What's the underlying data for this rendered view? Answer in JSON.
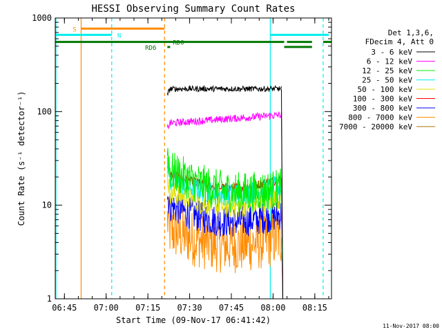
{
  "chart_data": {
    "type": "line",
    "title": "HESSI Observing Summary Count Rates",
    "xlabel": "Start Time (09-Nov-17 06:41:42)",
    "ylabel": "Count Rate (s⁻¹ detector⁻¹)",
    "y_scale": "log",
    "ylim": [
      1,
      1000
    ],
    "xlim": [
      "06:41:42",
      "08:21:00"
    ],
    "x_ticks": [
      "06:45",
      "07:00",
      "07:15",
      "07:30",
      "07:45",
      "08:00",
      "08:15"
    ],
    "y_ticks": [
      "1",
      "10",
      "100",
      "1000"
    ],
    "legend_header": [
      "Det 1,3,6,",
      "FDecim 4, Att 0"
    ],
    "legend_position": "right",
    "series": [
      {
        "name": "3 - 6 keV",
        "color": "#000000",
        "x_start": "07:22",
        "x_end": "08:03",
        "level_start": 175,
        "level_end": 175,
        "noise": 0.03,
        "drop_start": 150
      },
      {
        "name": "6 - 12 keV",
        "color": "#ff00ff",
        "x_start": "07:22",
        "x_end": "08:03",
        "level_start": 75,
        "level_end": 92,
        "noise": 0.04,
        "drop_start": 65
      },
      {
        "name": "12 - 25 keV",
        "color": "#00ee00",
        "x_start": "07:22",
        "x_end": "08:03",
        "level_start": 24,
        "level_end": 15,
        "noise": 0.22,
        "drop_start": 40
      },
      {
        "name": "25 - 50 keV",
        "color": "#00eeee",
        "x_start": "07:22",
        "x_end": "08:03",
        "level_start": 19,
        "level_end": 16,
        "noise": 0.12,
        "drop_start": 30
      },
      {
        "name": "50 - 100 keV",
        "color": "#e0e000",
        "x_start": "07:22",
        "x_end": "08:03",
        "level_start": 14,
        "level_end": 12,
        "noise": 0.13,
        "drop_start": 20
      },
      {
        "name": "100 - 300 keV",
        "color": "#ff0000",
        "x_start": "07:22",
        "x_end": "08:03",
        "level_start": 22,
        "level_end": 19,
        "noise": 0.05,
        "drop_start": 27
      },
      {
        "name": "300 - 800 keV",
        "color": "#0000ff",
        "x_start": "07:22",
        "x_end": "08:03",
        "level_start": 10,
        "level_end": 8,
        "noise": 0.17,
        "drop_start": 13
      },
      {
        "name": "800 - 7000 keV",
        "color": "#ff8c00",
        "x_start": "07:22",
        "x_end": "08:03",
        "level_start": 5.5,
        "level_end": 4.5,
        "noise": 0.3,
        "drop_start": 7
      },
      {
        "name": "7000 - 20000 keV",
        "color": "#a87000",
        "x_start": "07:22",
        "x_end": "08:03",
        "level_start": 0,
        "level_end": 0,
        "noise": 0,
        "drop_start": 0
      }
    ],
    "flag_bars": [
      {
        "label": "S",
        "color": "#ff8c00",
        "y_value": 770,
        "segments": [
          [
            "06:51",
            "07:21"
          ]
        ],
        "label_x": "06:48"
      },
      {
        "label": "N",
        "color": "#00eeee",
        "y_value": 660,
        "segments": [
          [
            "06:41:42",
            "07:02"
          ],
          [
            "07:59",
            "08:20"
          ]
        ],
        "label_x": "07:04"
      },
      {
        "label": "RD0",
        "color": "#007700",
        "y_value": 555,
        "segments": [
          [
            "06:41:42",
            "08:04"
          ],
          [
            "08:05",
            "08:14"
          ],
          [
            "08:18",
            "08:21"
          ]
        ],
        "label_x": "07:24"
      },
      {
        "label": "RD6",
        "color": "#007700",
        "y_value": 490,
        "segments": [
          [
            "07:22",
            "07:23"
          ],
          [
            "08:04",
            "08:14"
          ]
        ],
        "label_x": "07:14"
      }
    ],
    "vertical_lines": [
      {
        "x": "06:41:42",
        "color": "#00eeee",
        "style": "solid"
      },
      {
        "x": "06:51",
        "color": "#ff8c00",
        "style": "solid"
      },
      {
        "x": "07:02",
        "color": "#00eeee",
        "style": "dashed"
      },
      {
        "x": "07:21",
        "color": "#ff8c00",
        "style": "dashed"
      },
      {
        "x": "07:59",
        "color": "#00eeee",
        "style": "solid"
      },
      {
        "x": "08:18",
        "color": "#00eeee",
        "style": "dashed"
      }
    ]
  },
  "footer": {
    "timestamp": "11-Nov-2017 08:00"
  }
}
